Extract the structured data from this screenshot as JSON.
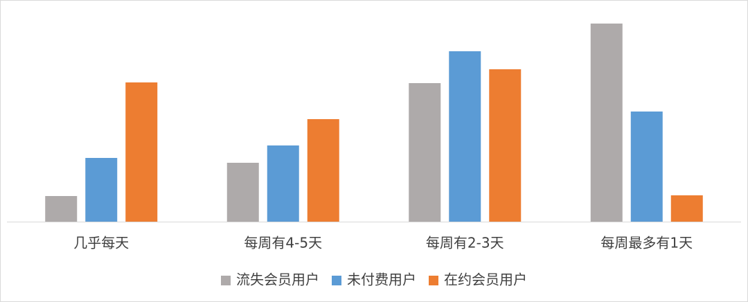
{
  "chart_data": {
    "type": "bar",
    "categories": [
      "几乎每天",
      "每周有4-5天",
      "每周有2-3天",
      "每周最多有1天"
    ],
    "series": [
      {
        "name": "流失会员用户",
        "color": "#aeaaaa",
        "values": [
          37,
          85,
          200,
          286
        ]
      },
      {
        "name": "未付费用户",
        "color": "#5b9bd5",
        "values": [
          92,
          110,
          246,
          159
        ]
      },
      {
        "name": "在约会员用户",
        "color": "#ed7d31",
        "values": [
          201,
          148,
          220,
          38
        ]
      }
    ],
    "ylim": [
      0,
      300
    ],
    "legend": "bottom"
  }
}
